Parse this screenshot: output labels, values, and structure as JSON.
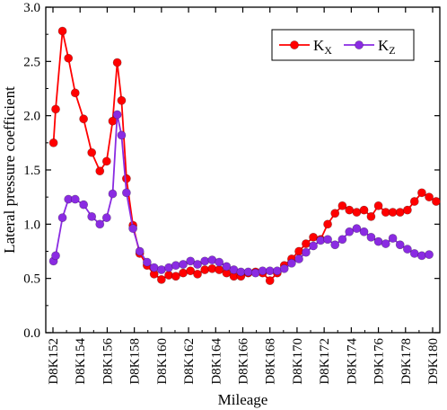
{
  "chart_data": {
    "type": "line",
    "xlabel": "Mileage",
    "ylabel": "Lateral pressure coefficient",
    "ylim": [
      0.0,
      3.0
    ],
    "yticks": [
      "0.0",
      "0.5",
      "1.0",
      "1.5",
      "2.0",
      "2.5",
      "3.0"
    ],
    "categories": [
      "D8K152",
      "D8K154",
      "D8K156",
      "D8K158",
      "D8K160",
      "D8K162",
      "D8K164",
      "D8K166",
      "D8K168",
      "D8K170",
      "D8K172",
      "D8K174",
      "D9K176",
      "D9K178",
      "D9K180"
    ],
    "xlim": [
      0,
      14
    ],
    "legend_position": "top-right",
    "series": [
      {
        "name": "Kx",
        "label_base": "K",
        "label_sub": "X",
        "color": "#ff0000",
        "x": [
          0.02,
          0.1,
          0.35,
          0.57,
          0.82,
          1.13,
          1.43,
          1.73,
          1.98,
          2.2,
          2.37,
          2.53,
          2.71,
          2.95,
          3.2,
          3.47,
          3.73,
          4.0,
          4.27,
          4.53,
          4.8,
          5.07,
          5.33,
          5.6,
          5.87,
          6.13,
          6.4,
          6.67,
          6.93,
          7.2,
          7.47,
          7.73,
          8.0,
          8.27,
          8.53,
          8.8,
          9.07,
          9.33,
          9.6,
          9.87,
          10.13,
          10.4,
          10.67,
          10.93,
          11.2,
          11.47,
          11.73,
          12.0,
          12.27,
          12.53,
          12.8,
          13.07,
          13.33,
          13.6,
          13.87,
          14.13
        ],
        "values": [
          1.75,
          2.06,
          2.78,
          2.53,
          2.21,
          1.97,
          1.66,
          1.49,
          1.58,
          1.95,
          2.49,
          2.14,
          1.42,
          0.99,
          0.73,
          0.62,
          0.54,
          0.49,
          0.53,
          0.52,
          0.55,
          0.57,
          0.54,
          0.58,
          0.59,
          0.58,
          0.55,
          0.52,
          0.52,
          0.55,
          0.56,
          0.55,
          0.48,
          0.55,
          0.62,
          0.68,
          0.75,
          0.82,
          0.88,
          0.86,
          1.0,
          1.1,
          1.17,
          1.13,
          1.11,
          1.13,
          1.07,
          1.17,
          1.11,
          1.11,
          1.11,
          1.13,
          1.21,
          1.29,
          1.25,
          1.21
        ]
      },
      {
        "name": "Kz",
        "label_base": "K",
        "label_sub": "Z",
        "color": "#8a2be2",
        "x": [
          0.02,
          0.1,
          0.35,
          0.57,
          0.82,
          1.13,
          1.43,
          1.73,
          1.98,
          2.2,
          2.37,
          2.53,
          2.71,
          2.95,
          3.2,
          3.47,
          3.73,
          4.0,
          4.27,
          4.53,
          4.8,
          5.07,
          5.33,
          5.6,
          5.87,
          6.13,
          6.4,
          6.67,
          6.93,
          7.2,
          7.47,
          7.73,
          8.0,
          8.27,
          8.53,
          8.8,
          9.07,
          9.33,
          9.6,
          9.87,
          10.13,
          10.4,
          10.67,
          10.93,
          11.2,
          11.47,
          11.73,
          12.0,
          12.27,
          12.53,
          12.8,
          13.07,
          13.33,
          13.6,
          13.87
        ],
        "values": [
          0.66,
          0.71,
          1.06,
          1.23,
          1.23,
          1.18,
          1.07,
          1.0,
          1.06,
          1.28,
          2.01,
          1.82,
          1.29,
          0.96,
          0.75,
          0.65,
          0.6,
          0.58,
          0.6,
          0.62,
          0.63,
          0.66,
          0.63,
          0.66,
          0.67,
          0.65,
          0.61,
          0.58,
          0.56,
          0.56,
          0.55,
          0.57,
          0.57,
          0.57,
          0.59,
          0.64,
          0.68,
          0.74,
          0.8,
          0.85,
          0.86,
          0.81,
          0.86,
          0.93,
          0.96,
          0.93,
          0.88,
          0.84,
          0.82,
          0.87,
          0.81,
          0.77,
          0.73,
          0.71,
          0.72
        ]
      }
    ]
  }
}
